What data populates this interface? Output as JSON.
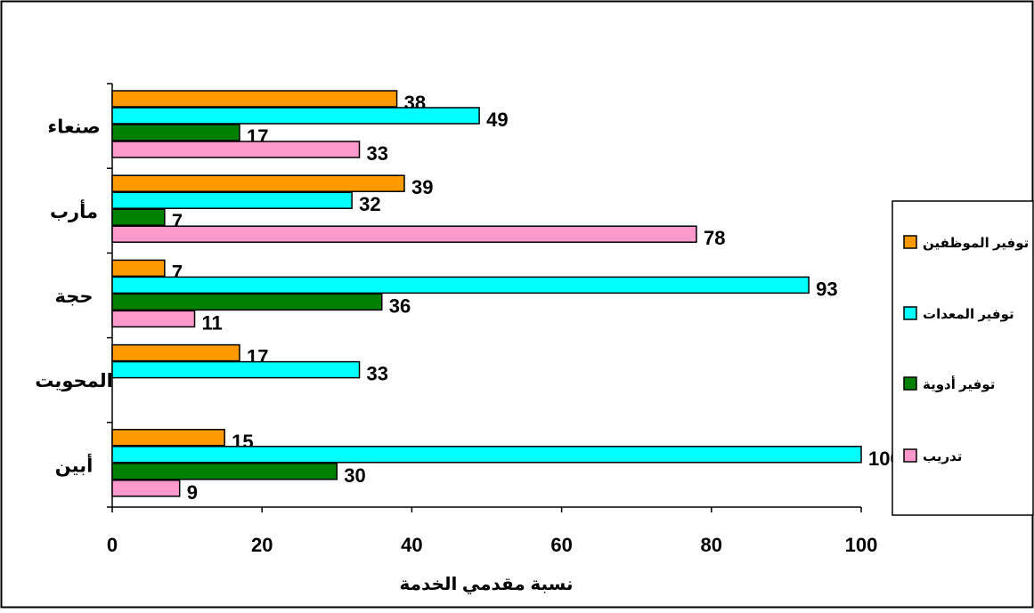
{
  "chart_data": {
    "type": "bar",
    "orientation": "horizontal",
    "categories": [
      "أبين",
      "المحويت",
      "حجة",
      "مأرب",
      "صنعاء"
    ],
    "series": [
      {
        "name": "توفير الموظفين",
        "color": "#FF9900",
        "values": [
          15,
          17,
          7,
          39,
          38
        ]
      },
      {
        "name": "توفير المعدات",
        "color": "#00FFFF",
        "values": [
          100,
          33,
          93,
          32,
          49
        ]
      },
      {
        "name": "توفير أدوية",
        "color": "#008000",
        "values": [
          30,
          null,
          36,
          7,
          17
        ]
      },
      {
        "name": "تدريب",
        "color": "#FF99CC",
        "values": [
          9,
          null,
          11,
          78,
          33
        ]
      }
    ],
    "xlabel": "نسبة مقدمي الخدمة",
    "ylabel": "",
    "xlim": [
      0,
      100
    ],
    "xticks": [
      0,
      20,
      40,
      60,
      80,
      100
    ],
    "grid": false,
    "legend_position": "right"
  }
}
